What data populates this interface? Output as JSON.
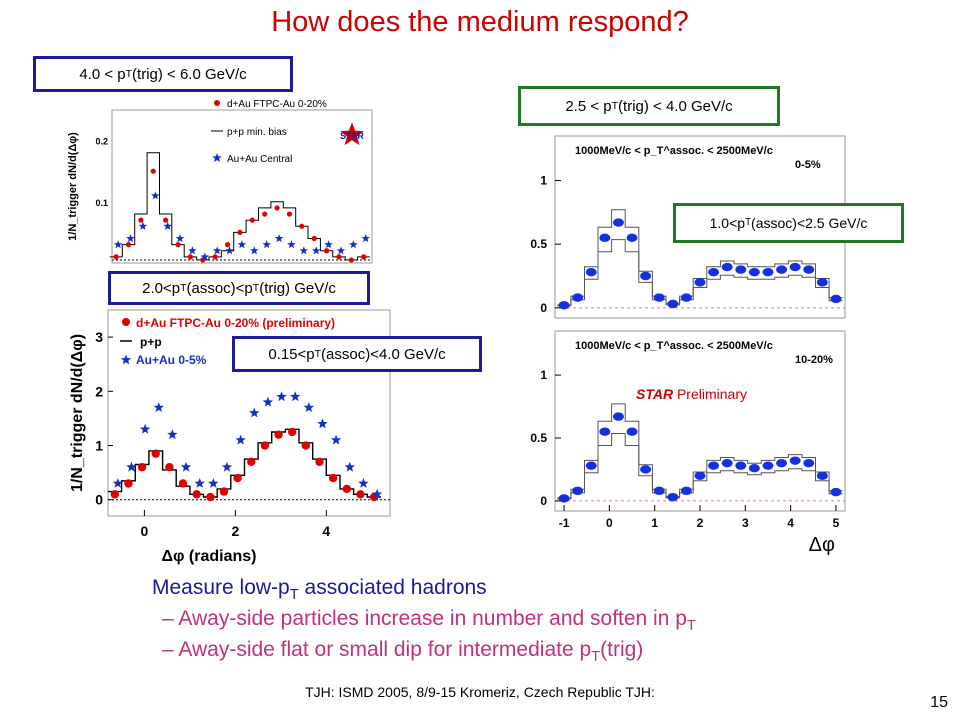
{
  "slide": {
    "title": "How does the medium respond?",
    "page_number": "15",
    "footer": "TJH: ISMD 2005, 8/9-15 Kromeriz, Czech Republic TJH:"
  },
  "labels": {
    "trig_high": {
      "pre": "4.0 < p",
      "sub": "T",
      "post": "(trig) < 6.0 GeV/c"
    },
    "assoc_high": {
      "pre": "2.0<p",
      "sub": "T",
      "mid": "(assoc)<p",
      "sub2": "T",
      "post": "(trig) GeV/c"
    },
    "assoc_low": {
      "pre": "0.15<p",
      "sub": "T",
      "post": "(assoc)<4.0 GeV/c"
    },
    "trig_mid": {
      "pre": "2.5 < p",
      "sub": "T",
      "post": "(trig) < 4.0 GeV/c"
    },
    "assoc_mid": {
      "pre": "1.0<p",
      "sub": "T",
      "post": "(assoc)<2.5 GeV/c"
    },
    "star_prelim": {
      "bold": "STAR",
      "rest": " Preliminary"
    }
  },
  "bullets": {
    "head": {
      "pre": "Measure low-p",
      "sub": "T",
      "post": " associated hadrons"
    },
    "items": [
      {
        "pre": "– Away-side particles increase in number and soften in p",
        "sub": "T",
        "post": ""
      },
      {
        "pre": "– Away-side flat or small dip for intermediate p",
        "sub": "T",
        "post": "(trig)"
      }
    ]
  },
  "chart_data": [
    {
      "type": "scatter",
      "panel": "top-left",
      "ylabel": "1/N_trigger dN/d(Δφ)",
      "ytick_labels": [
        "0.1",
        "0.2"
      ],
      "ylim": [
        0,
        0.25
      ],
      "xlim": [
        -1.0,
        5.3
      ],
      "legend": [
        "d+Au FTPC-Au 0-20%",
        "p+p min. bias",
        "Au+Au Central"
      ],
      "logo": "STAR",
      "x": [
        -0.9,
        -0.6,
        -0.3,
        0.0,
        0.3,
        0.6,
        0.9,
        1.2,
        1.5,
        1.8,
        2.1,
        2.4,
        2.7,
        3.0,
        3.3,
        3.6,
        3.9,
        4.2,
        4.5,
        4.8,
        5.1
      ],
      "series": [
        {
          "name": "d+Au FTPC-Au 0-20%",
          "values": [
            0.01,
            0.03,
            0.07,
            0.15,
            0.07,
            0.03,
            0.01,
            0.005,
            0.01,
            0.03,
            0.05,
            0.07,
            0.08,
            0.09,
            0.08,
            0.06,
            0.04,
            0.02,
            0.01,
            0.005,
            0.01
          ]
        },
        {
          "name": "p+p min. bias",
          "values": [
            0.01,
            0.03,
            0.08,
            0.18,
            0.08,
            0.03,
            0.01,
            0.005,
            0.01,
            0.02,
            0.05,
            0.07,
            0.09,
            0.1,
            0.09,
            0.06,
            0.04,
            0.02,
            0.01,
            0.005,
            0.01
          ]
        },
        {
          "name": "Au+Au Central",
          "values": [
            0.03,
            0.04,
            0.06,
            0.11,
            0.06,
            0.04,
            0.02,
            0.01,
            0.02,
            0.02,
            0.03,
            0.02,
            0.03,
            0.04,
            0.03,
            0.02,
            0.02,
            0.03,
            0.02,
            0.03,
            0.04
          ]
        }
      ]
    },
    {
      "type": "scatter",
      "panel": "bottom-left",
      "ylabel": "1/N_trigger dN/d(Δφ)",
      "xlabel": "Δφ (radians)",
      "ytick_labels": [
        "0",
        "1",
        "2",
        "3"
      ],
      "xtick_labels": [
        "0",
        "2",
        "4"
      ],
      "ylim": [
        -0.3,
        3.5
      ],
      "xlim": [
        -0.8,
        5.4
      ],
      "legend": [
        "d+Au FTPC-Au 0-20% (preliminary)",
        "p+p",
        "Au+Au 0-5%"
      ],
      "x": [
        -0.65,
        -0.35,
        -0.05,
        0.25,
        0.55,
        0.85,
        1.15,
        1.45,
        1.75,
        2.05,
        2.35,
        2.65,
        2.95,
        3.25,
        3.55,
        3.85,
        4.15,
        4.45,
        4.75,
        5.05
      ],
      "series": [
        {
          "name": "d+Au FTPC-Au 0-20% (preliminary)",
          "values": [
            0.1,
            0.3,
            0.6,
            0.85,
            0.6,
            0.3,
            0.1,
            0.05,
            0.15,
            0.4,
            0.7,
            1.0,
            1.2,
            1.25,
            1.0,
            0.7,
            0.4,
            0.2,
            0.1,
            0.05
          ]
        },
        {
          "name": "p+p",
          "values": [
            0.15,
            0.35,
            0.65,
            0.9,
            0.55,
            0.25,
            0.1,
            0.05,
            0.2,
            0.45,
            0.75,
            1.05,
            1.25,
            1.3,
            1.05,
            0.75,
            0.45,
            0.2,
            0.1,
            0.05
          ]
        },
        {
          "name": "Au+Au 0-5%",
          "values": [
            0.3,
            0.6,
            1.3,
            1.7,
            1.2,
            0.6,
            0.3,
            0.3,
            0.6,
            1.1,
            1.6,
            1.8,
            1.9,
            1.9,
            1.7,
            1.4,
            1.1,
            0.6,
            0.3,
            0.1
          ]
        }
      ]
    },
    {
      "type": "scatter",
      "panel": "top-right",
      "ytick_labels": [
        "0",
        "0.5",
        "1"
      ],
      "ylim": [
        -0.08,
        1.35
      ],
      "xlim": [
        -1.2,
        5.2
      ],
      "annotation": [
        "1000MeV/c < p_T^assoc. < 2500MeV/c",
        "0-5%"
      ],
      "x": [
        -1.0,
        -0.7,
        -0.4,
        -0.1,
        0.2,
        0.5,
        0.8,
        1.1,
        1.4,
        1.7,
        2.0,
        2.3,
        2.6,
        2.9,
        3.2,
        3.5,
        3.8,
        4.1,
        4.4,
        4.7,
        5.0
      ],
      "series": [
        {
          "name": "",
          "values": [
            0.02,
            0.08,
            0.28,
            0.55,
            0.67,
            0.55,
            0.25,
            0.08,
            0.03,
            0.08,
            0.2,
            0.28,
            0.32,
            0.3,
            0.28,
            0.28,
            0.3,
            0.32,
            0.3,
            0.2,
            0.07
          ]
        }
      ]
    },
    {
      "type": "scatter",
      "panel": "bottom-right",
      "xlabel": "Δφ",
      "ytick_labels": [
        "0",
        "0.5",
        "1"
      ],
      "xtick_labels": [
        "-1",
        "0",
        "1",
        "2",
        "3",
        "4",
        "5"
      ],
      "ylim": [
        -0.08,
        1.35
      ],
      "xlim": [
        -1.2,
        5.2
      ],
      "annotation": [
        "1000MeV/c < p_T^assoc. < 2500MeV/c",
        "10-20%"
      ],
      "x": [
        -1.0,
        -0.7,
        -0.4,
        -0.1,
        0.2,
        0.5,
        0.8,
        1.1,
        1.4,
        1.7,
        2.0,
        2.3,
        2.6,
        2.9,
        3.2,
        3.5,
        3.8,
        4.1,
        4.4,
        4.7,
        5.0
      ],
      "series": [
        {
          "name": "",
          "values": [
            0.02,
            0.08,
            0.28,
            0.55,
            0.67,
            0.55,
            0.25,
            0.08,
            0.03,
            0.08,
            0.2,
            0.28,
            0.3,
            0.28,
            0.26,
            0.28,
            0.3,
            0.32,
            0.3,
            0.2,
            0.07
          ]
        }
      ]
    }
  ]
}
